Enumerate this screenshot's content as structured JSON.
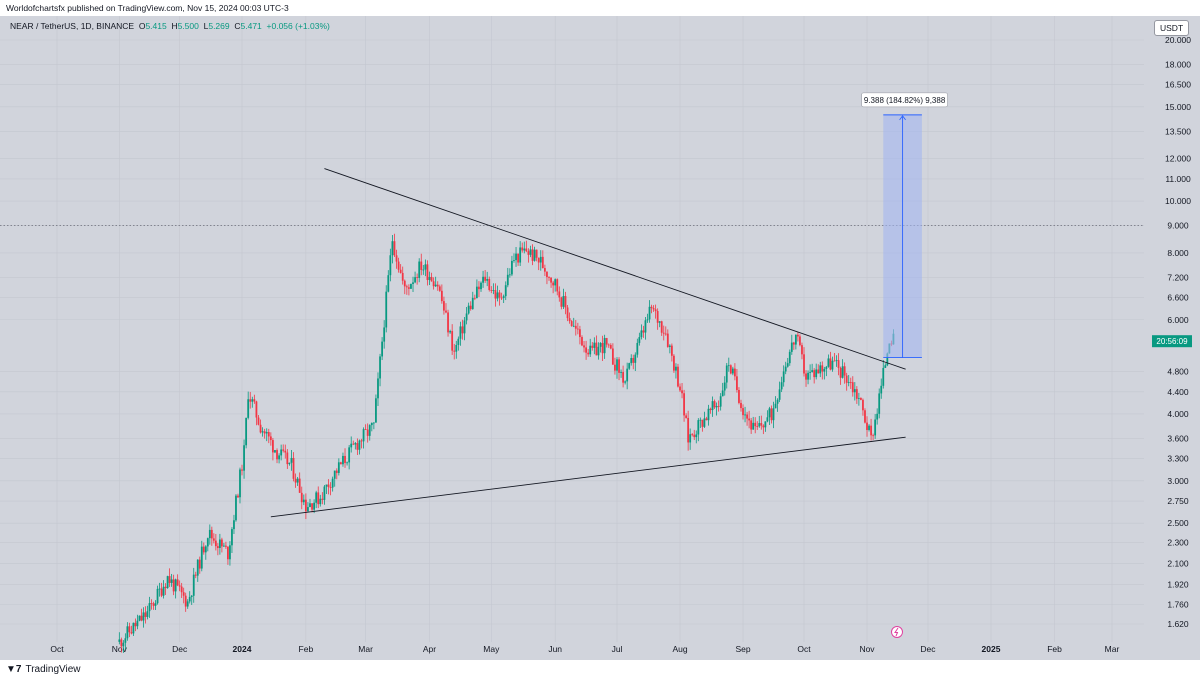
{
  "published_line": "Worldofchartsfx published on TradingView.com, Nov 15, 2024 00:03 UTC-3",
  "legend": {
    "symbol": "NEAR / TetherUS, 1D, BINANCE",
    "open_label": "O",
    "open": "5.415",
    "high_label": "H",
    "high": "5.500",
    "low_label": "L",
    "low": "5.269",
    "close_label": "C",
    "close": "5.471",
    "change": "+0.056 (+1.03%)"
  },
  "currency_button": "USDT",
  "price_tag": "20:56:09",
  "measure_label": "9.388 (184.82%) 9,388",
  "footer_brand": "TradingView",
  "colors": {
    "up": "#089981",
    "down": "#f23645",
    "background": "#d1d4dc",
    "measure_fill": "#a3b6f0",
    "measure_line": "#2962ff",
    "trendline": "#131722",
    "price_tag": "#089981"
  },
  "icons": {
    "footer_logo": "tradingview-logo-icon",
    "event_marker": "lightning-icon"
  },
  "chart_data": {
    "type": "candlestick",
    "scale": "log",
    "ylim": [
      1.45,
      20.5
    ],
    "y_ticks": [
      "20.000",
      "18.000",
      "16.500",
      "15.000",
      "13.500",
      "12.000",
      "11.000",
      "10.000",
      "9.000",
      "8.000",
      "7.200",
      "6.600",
      "6.000",
      "4.800",
      "4.400",
      "4.000",
      "3.600",
      "3.300",
      "3.000",
      "2.750",
      "2.500",
      "2.300",
      "2.100",
      "1.920",
      "1.760",
      "1.620"
    ],
    "x_ticks": [
      "Oct",
      "Nov",
      "Dec",
      "2024",
      "Feb",
      "Mar",
      "Apr",
      "May",
      "Jun",
      "Jul",
      "Aug",
      "Sep",
      "Oct",
      "Nov",
      "Dec",
      "2025",
      "Feb",
      "Mar"
    ],
    "bold_x_ticks": [
      "2024",
      "2025"
    ],
    "horizontal_level": 9.0,
    "last_price": 5.471,
    "series": [
      {
        "date": "2023-11-01",
        "close": 1.5
      },
      {
        "date": "2023-11-15",
        "close": 1.7
      },
      {
        "date": "2023-11-25",
        "close": 1.98
      },
      {
        "date": "2023-12-05",
        "close": 1.78
      },
      {
        "date": "2023-12-15",
        "close": 2.4
      },
      {
        "date": "2023-12-25",
        "close": 2.2
      },
      {
        "date": "2024-01-02",
        "close": 3.4
      },
      {
        "date": "2024-01-04",
        "close": 4.4
      },
      {
        "date": "2024-01-10",
        "close": 3.8
      },
      {
        "date": "2024-01-18",
        "close": 3.4
      },
      {
        "date": "2024-01-25",
        "close": 3.2
      },
      {
        "date": "2024-02-01",
        "close": 2.7
      },
      {
        "date": "2024-02-08",
        "close": 2.8
      },
      {
        "date": "2024-02-15",
        "close": 3.1
      },
      {
        "date": "2024-02-25",
        "close": 3.5
      },
      {
        "date": "2024-03-05",
        "close": 3.8
      },
      {
        "date": "2024-03-10",
        "close": 6.0
      },
      {
        "date": "2024-03-14",
        "close": 8.5
      },
      {
        "date": "2024-03-20",
        "close": 6.8
      },
      {
        "date": "2024-03-28",
        "close": 7.6
      },
      {
        "date": "2024-04-05",
        "close": 7.0
      },
      {
        "date": "2024-04-13",
        "close": 5.2
      },
      {
        "date": "2024-04-20",
        "close": 6.3
      },
      {
        "date": "2024-04-28",
        "close": 7.2
      },
      {
        "date": "2024-05-05",
        "close": 6.5
      },
      {
        "date": "2024-05-12",
        "close": 7.8
      },
      {
        "date": "2024-05-18",
        "close": 8.1
      },
      {
        "date": "2024-05-25",
        "close": 7.7
      },
      {
        "date": "2024-06-01",
        "close": 7.0
      },
      {
        "date": "2024-06-10",
        "close": 5.8
      },
      {
        "date": "2024-06-18",
        "close": 5.2
      },
      {
        "date": "2024-06-25",
        "close": 5.4
      },
      {
        "date": "2024-07-05",
        "close": 4.6
      },
      {
        "date": "2024-07-13",
        "close": 5.6
      },
      {
        "date": "2024-07-18",
        "close": 6.3
      },
      {
        "date": "2024-07-25",
        "close": 5.7
      },
      {
        "date": "2024-08-01",
        "close": 4.5
      },
      {
        "date": "2024-08-05",
        "close": 3.6
      },
      {
        "date": "2024-08-12",
        "close": 3.9
      },
      {
        "date": "2024-08-20",
        "close": 4.2
      },
      {
        "date": "2024-08-25",
        "close": 5.0
      },
      {
        "date": "2024-09-01",
        "close": 4.1
      },
      {
        "date": "2024-09-07",
        "close": 3.7
      },
      {
        "date": "2024-09-15",
        "close": 4.0
      },
      {
        "date": "2024-09-22",
        "close": 5.0
      },
      {
        "date": "2024-09-27",
        "close": 5.6
      },
      {
        "date": "2024-10-02",
        "close": 4.7
      },
      {
        "date": "2024-10-10",
        "close": 4.9
      },
      {
        "date": "2024-10-15",
        "close": 5.0
      },
      {
        "date": "2024-10-22",
        "close": 4.7
      },
      {
        "date": "2024-10-28",
        "close": 4.3
      },
      {
        "date": "2024-11-03",
        "close": 3.6
      },
      {
        "date": "2024-11-06",
        "close": 4.1
      },
      {
        "date": "2024-11-10",
        "close": 5.0
      },
      {
        "date": "2024-11-12",
        "close": 5.6
      },
      {
        "date": "2024-11-14",
        "close": 5.47
      }
    ],
    "trendlines": [
      {
        "name": "descending resistance",
        "from": {
          "date": "2024-02-10",
          "price": 11.5
        },
        "to": {
          "date": "2024-11-20",
          "price": 4.85
        }
      },
      {
        "name": "ascending support",
        "from": {
          "date": "2024-01-15",
          "price": 2.57
        },
        "to": {
          "date": "2024-11-20",
          "price": 3.62
        }
      }
    ],
    "projection": {
      "from_date": "2024-11-09",
      "to_date": "2024-11-28",
      "base": 5.1,
      "target": 14.49,
      "change": "9.388",
      "percent": "184.82%"
    }
  }
}
